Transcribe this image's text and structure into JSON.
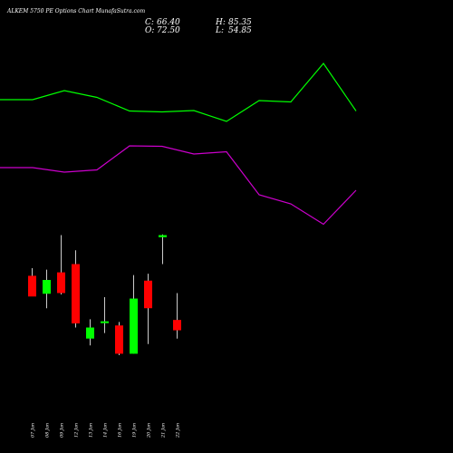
{
  "chart_data": {
    "type": "candlestick",
    "title": "ALKEM 5750 PE Options Chart MunafaSutra.com",
    "ohlc_header": {
      "close_label": "C:",
      "close": "66.40",
      "high_label": "H:",
      "high": "85.35",
      "open_label": "O:",
      "open": "72.50",
      "low_label": "L:",
      "low": "54.85"
    },
    "categories": [
      "07 Jan",
      "08 Jan",
      "09 Jan",
      "12 Jan",
      "13 Jan",
      "14 Jan",
      "16 Jan",
      "19 Jan",
      "20 Jan",
      "21 Jan",
      "22 Jan"
    ],
    "candles": [
      {
        "open": 121.5,
        "high": 127,
        "low": 107,
        "close": 106.5,
        "color": "#ff0000"
      },
      {
        "open": 108.5,
        "high": 126,
        "low": 98,
        "close": 118.5,
        "color": "#00ff00"
      },
      {
        "open": 124,
        "high": 151,
        "low": 108,
        "close": 109,
        "color": "#ff0000"
      },
      {
        "open": 130,
        "high": 140,
        "low": 84,
        "close": 87,
        "color": "#ff0000"
      },
      {
        "open": 76,
        "high": 90,
        "low": 71,
        "close": 84,
        "color": "#00ff00"
      },
      {
        "open": 87.5,
        "high": 106,
        "low": 80,
        "close": 88.5,
        "color": "#00ff00"
      },
      {
        "open": 85.5,
        "high": 88,
        "low": 64,
        "close": 65,
        "color": "#ff0000"
      },
      {
        "open": 65,
        "high": 122,
        "low": 65,
        "close": 105,
        "color": "#00ff00"
      },
      {
        "open": 118,
        "high": 123,
        "low": 72,
        "close": 98,
        "color": "#ff0000"
      },
      {
        "open": 149.5,
        "high": 151.5,
        "low": 130,
        "close": 151,
        "color": "#00ff00"
      },
      {
        "open": 89.5,
        "high": 109,
        "low": 76,
        "close": 82,
        "color": "#ff0000"
      }
    ],
    "upper_line": {
      "color": "#00ff00",
      "values": [
        0.78,
        0.78,
        0.8,
        0.785,
        0.755,
        0.753,
        0.756,
        0.732,
        0.778,
        0.775,
        0.86,
        0.755
      ]
    },
    "lower_line": {
      "color": "#cc00cc",
      "values": [
        0.63,
        0.63,
        0.62,
        0.625,
        0.678,
        0.677,
        0.66,
        0.665,
        0.57,
        0.55,
        0.505,
        0.58
      ]
    }
  }
}
